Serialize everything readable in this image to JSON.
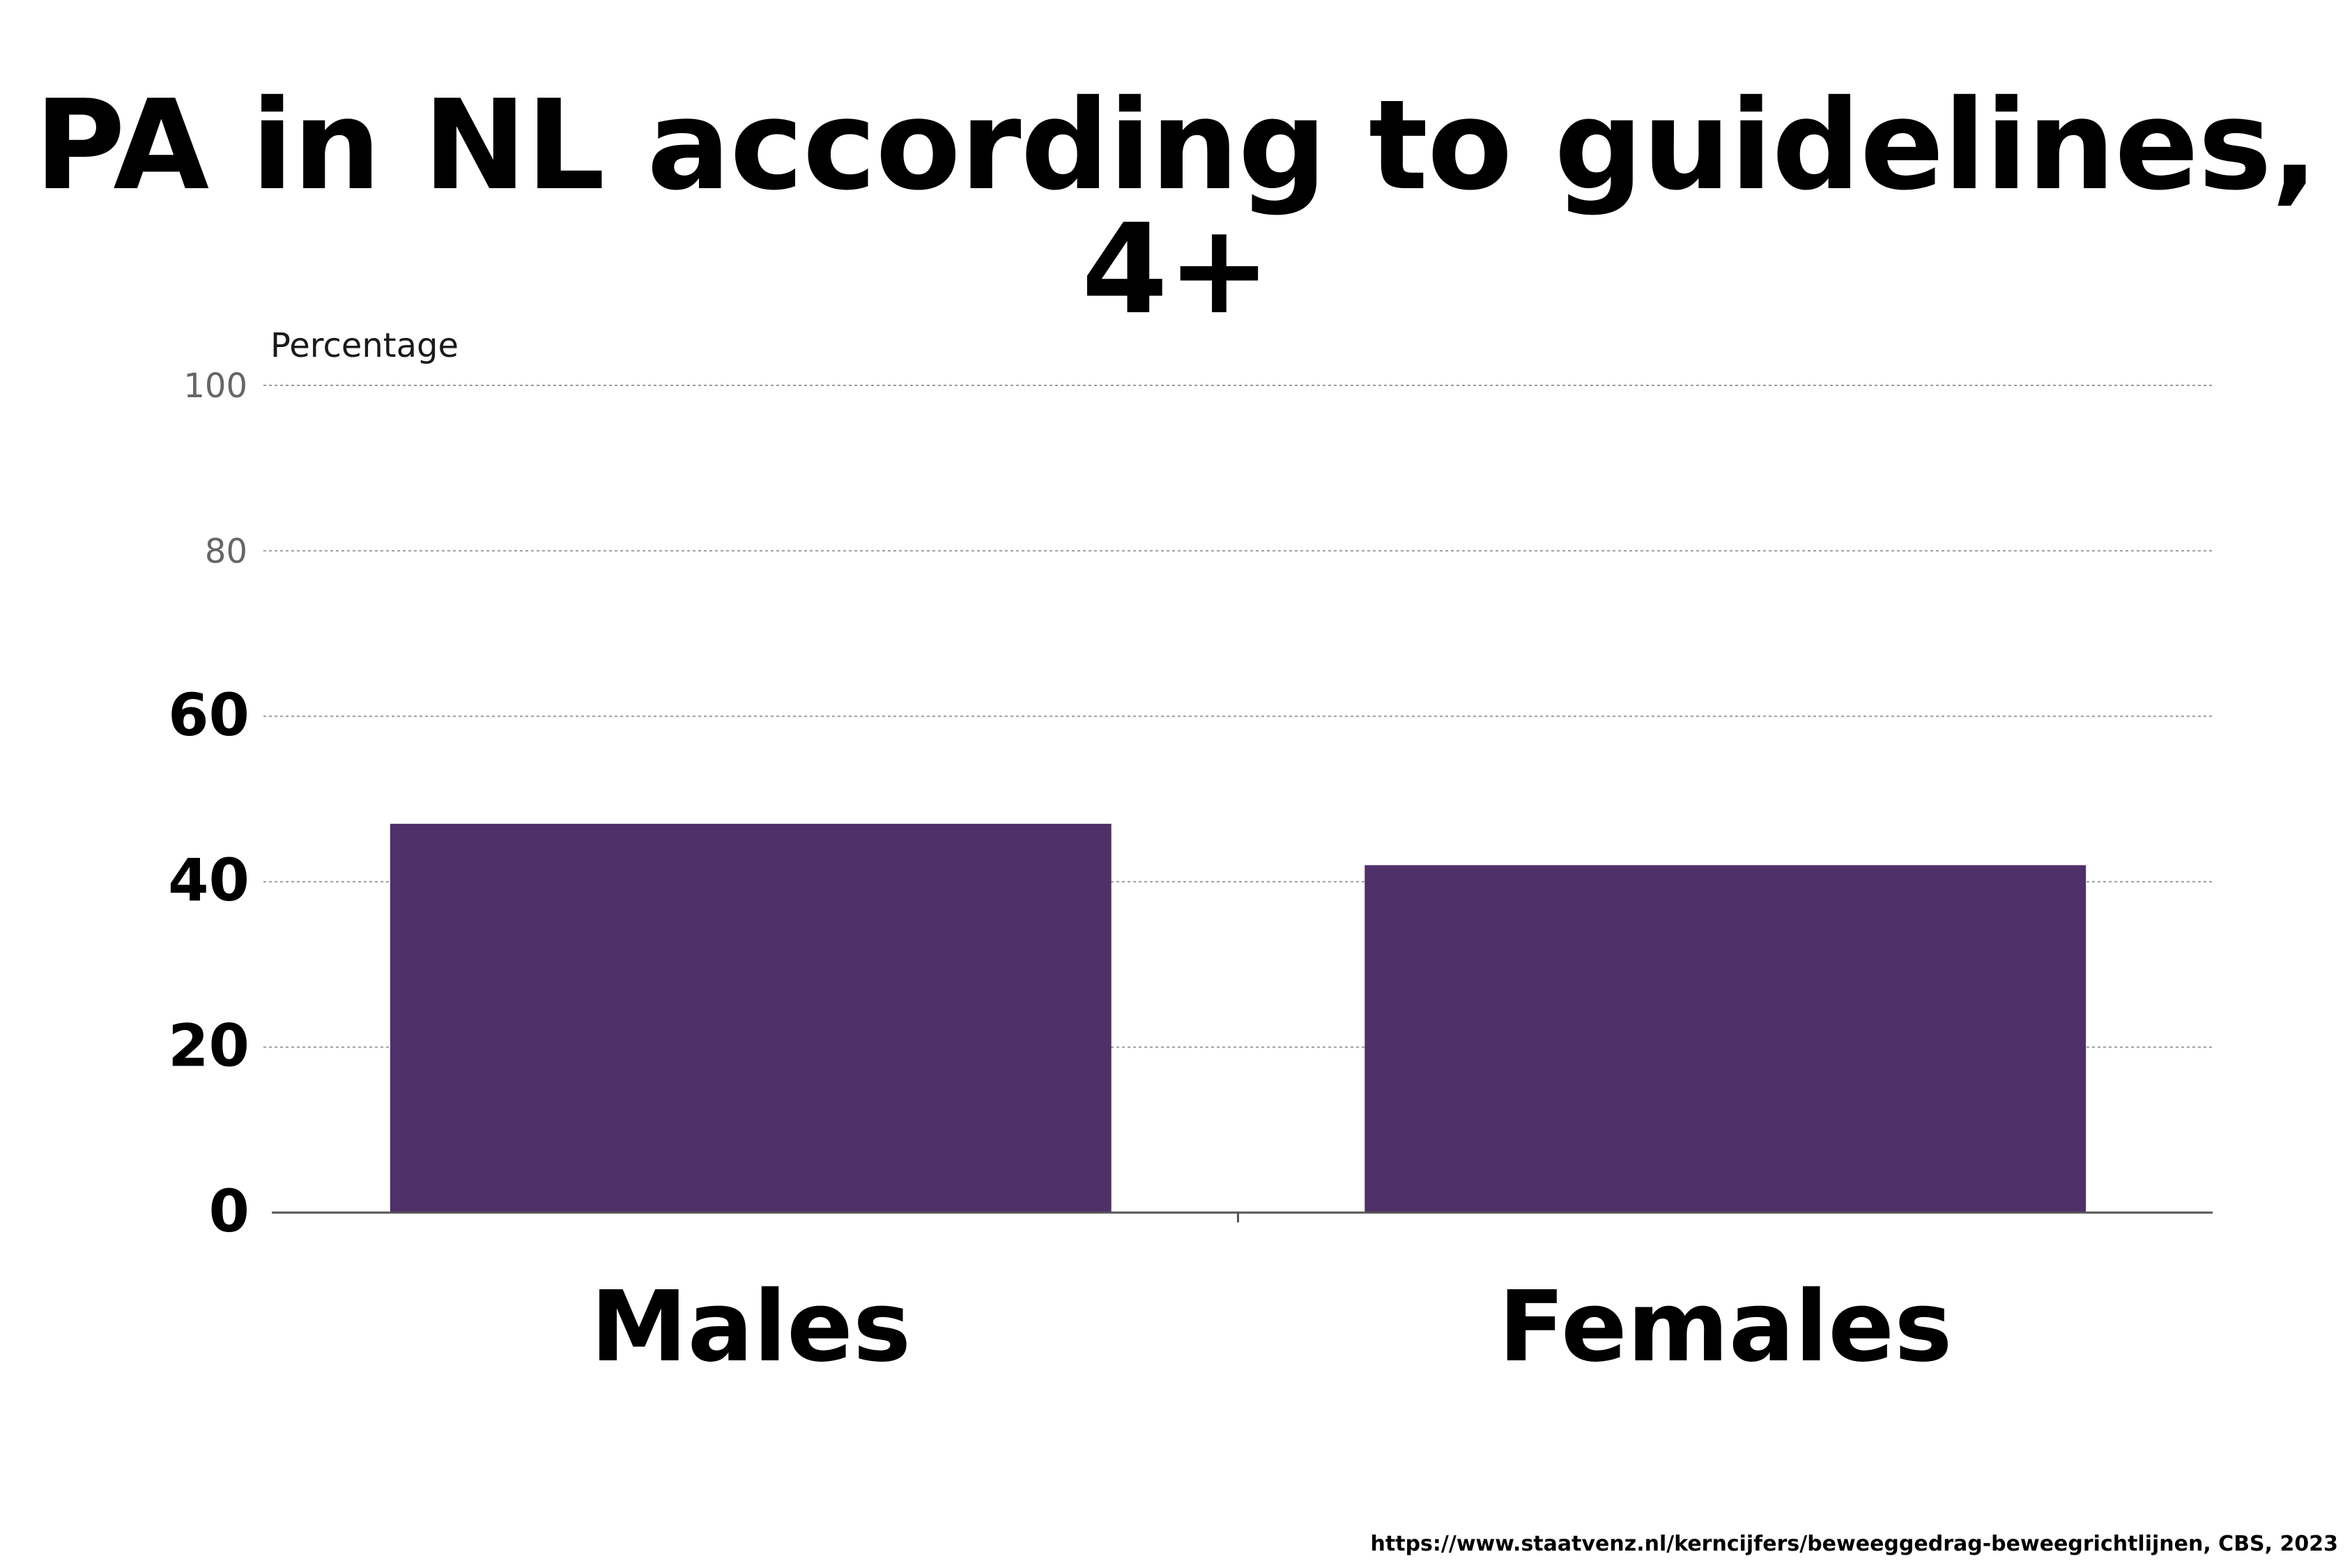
{
  "chart_data": {
    "type": "bar",
    "title": "PA in NL according to guidelines, 4+",
    "ylabel": "Percentage",
    "xlabel": "",
    "categories": [
      "Males",
      "Females"
    ],
    "values": [
      47,
      42
    ],
    "ylim": [
      0,
      100
    ],
    "yticks": [
      0,
      20,
      40,
      60,
      80,
      100
    ],
    "grid": true,
    "legend": "none",
    "bar_color": "#4f3068"
  },
  "source": "https://www.staatvenz.nl/kerncijfers/beweeggedrag-beweegrichtlijnen, CBS, 2023"
}
